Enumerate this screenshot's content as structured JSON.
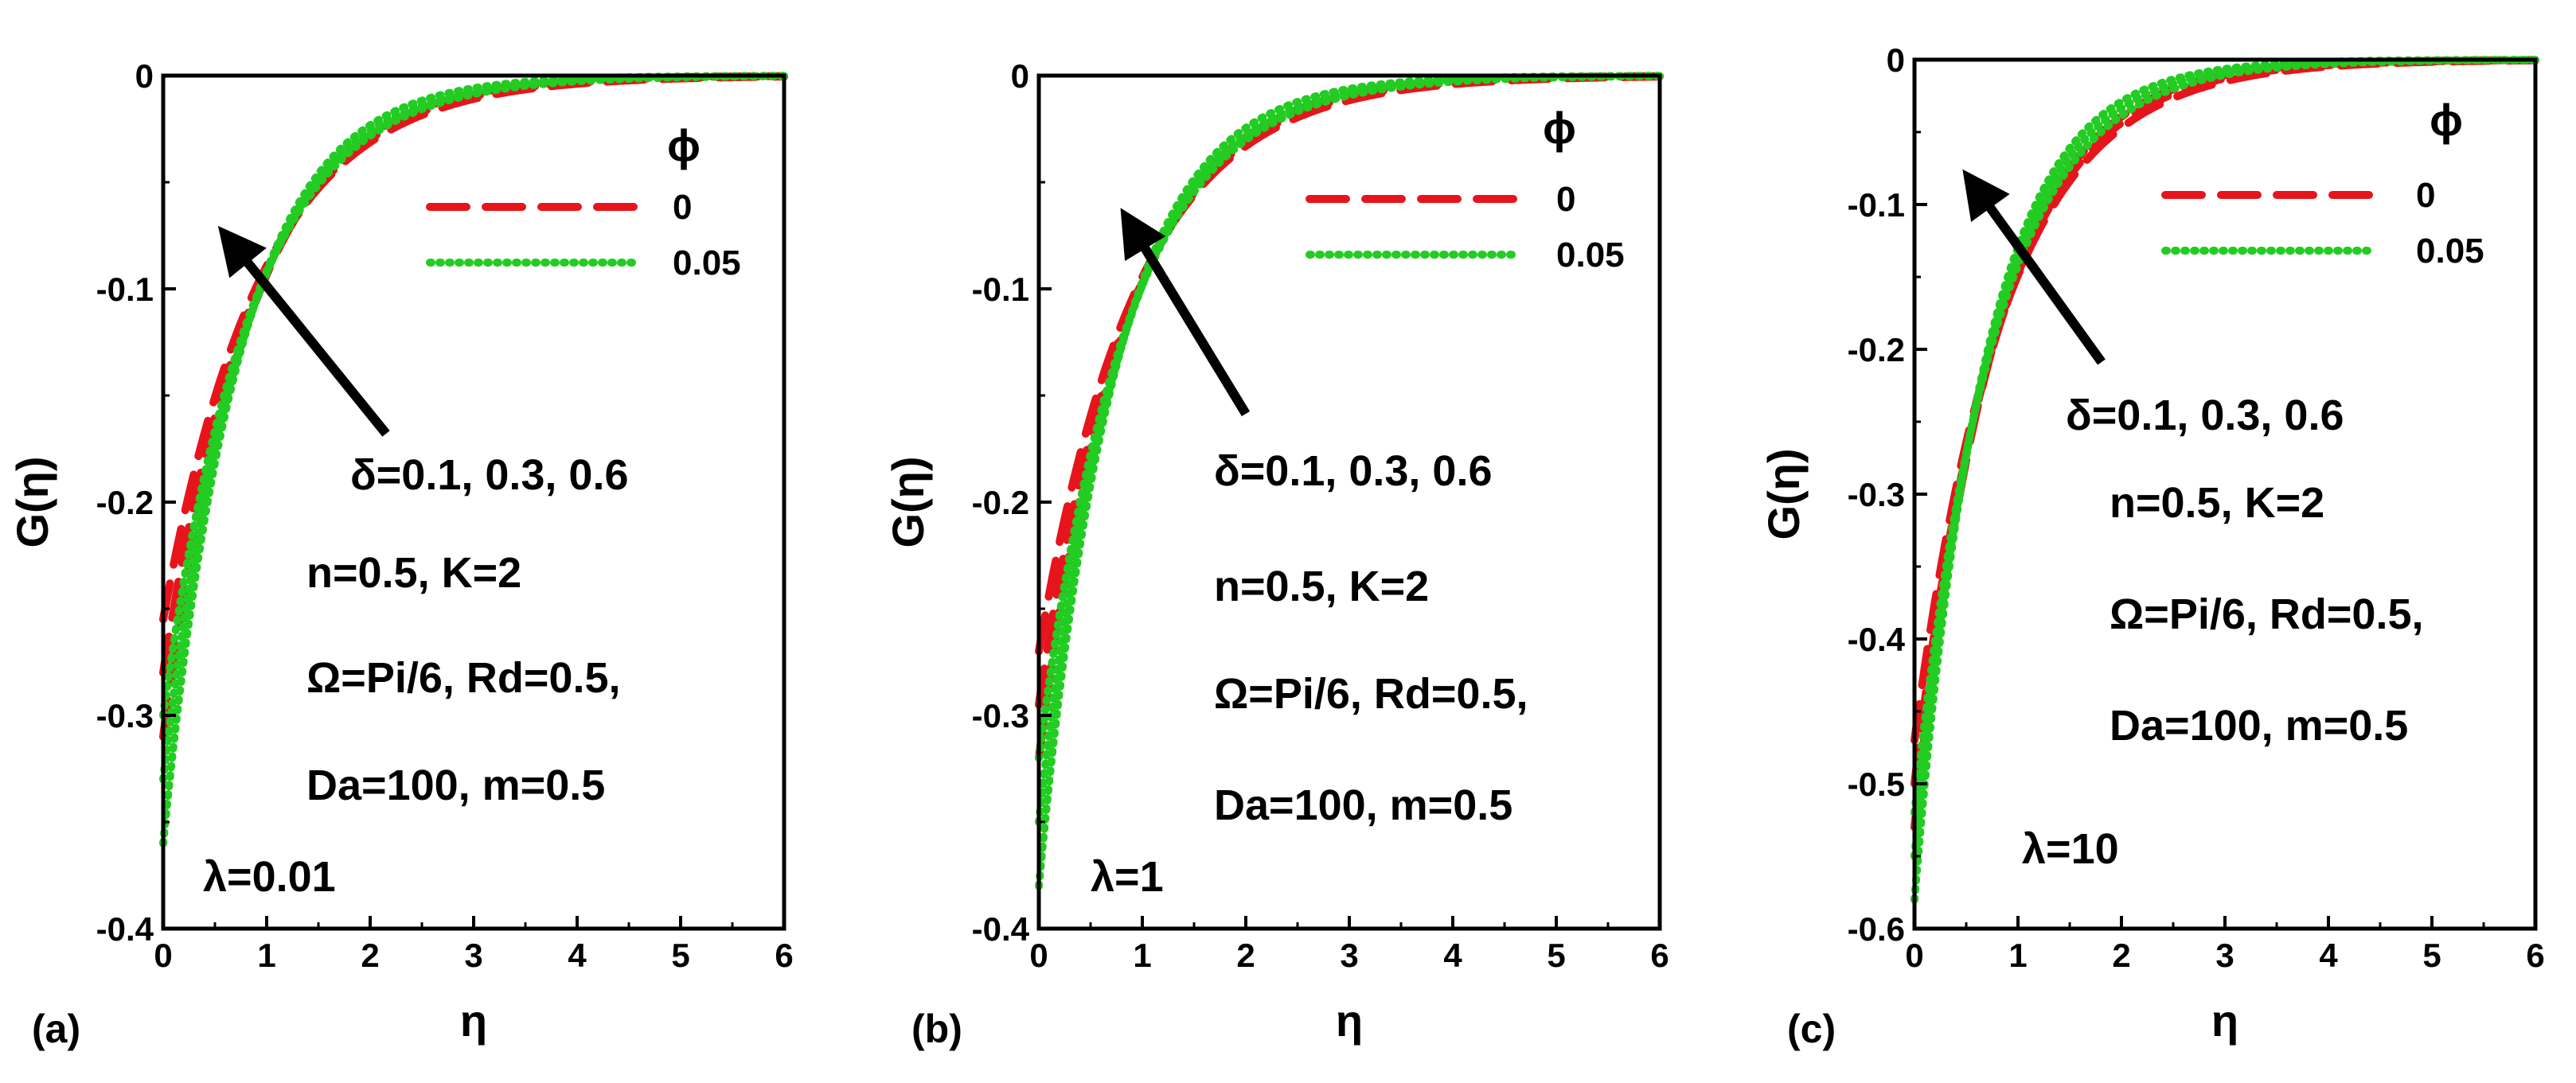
{
  "figure": {
    "panel_count": 3
  },
  "chart_data": [
    {
      "type": "line",
      "panel_label": "(a)",
      "xlabel": "η",
      "ylabel": "G(η)",
      "xlim": [
        0,
        6
      ],
      "ylim": [
        -0.4,
        0.0
      ],
      "xticks": [
        0,
        1,
        2,
        3,
        4,
        5,
        6
      ],
      "xtick_labels": [
        "0",
        "1",
        "2",
        "3",
        "4",
        "5",
        "6"
      ],
      "yticks": [
        -0.4,
        -0.3,
        -0.2,
        -0.1,
        0
      ],
      "ytick_labels": [
        "-0.4",
        "-0.3",
        "-0.2",
        "-0.1",
        "0"
      ],
      "legend": {
        "title": "ϕ",
        "entries": [
          {
            "label": "0",
            "color": "#e8141c",
            "style": "dashed"
          },
          {
            "label": "0.05",
            "color": "#22cc22",
            "style": "dotted"
          }
        ]
      },
      "param_delta": "δ=0.1, 0.3, 0.6",
      "param_nk": "n=0.5,  K=2",
      "param_omega": "Ω=Pi/6, Rd=0.5,",
      "param_da": "Da=100, m=0.5",
      "param_lambda": "λ=0.01",
      "arrow_note": "arrow points in direction of increasing δ",
      "series": [
        {
          "name": "ϕ=0, δ=0.1",
          "phi": "0",
          "color": "#e8141c",
          "style": "dashed",
          "g0": -0.255,
          "k": 1.05
        },
        {
          "name": "ϕ=0, δ=0.3",
          "phi": "0",
          "color": "#e8141c",
          "style": "dashed",
          "g0": -0.28,
          "k": 1.12
        },
        {
          "name": "ϕ=0, δ=0.6",
          "phi": "0",
          "color": "#e8141c",
          "style": "dashed",
          "g0": -0.31,
          "k": 1.2
        },
        {
          "name": "ϕ=0.05, δ=0.1",
          "phi": "0.05",
          "color": "#22cc22",
          "style": "dotted",
          "g0": -0.3,
          "k": 1.18
        },
        {
          "name": "ϕ=0.05, δ=0.3",
          "phi": "0.05",
          "color": "#22cc22",
          "style": "dotted",
          "g0": -0.33,
          "k": 1.27
        },
        {
          "name": "ϕ=0.05, δ=0.6",
          "phi": "0.05",
          "color": "#22cc22",
          "style": "dotted",
          "g0": -0.36,
          "k": 1.37
        }
      ]
    },
    {
      "type": "line",
      "panel_label": "(b)",
      "xlabel": "η",
      "ylabel": "G(η)",
      "xlim": [
        0,
        6
      ],
      "ylim": [
        -0.4,
        0.0
      ],
      "xticks": [
        0,
        1,
        2,
        3,
        4,
        5,
        6
      ],
      "xtick_labels": [
        "0",
        "1",
        "2",
        "3",
        "4",
        "5",
        "6"
      ],
      "yticks": [
        -0.4,
        -0.3,
        -0.2,
        -0.1,
        0
      ],
      "ytick_labels": [
        "-0.4",
        "-0.3",
        "-0.2",
        "-0.1",
        "0"
      ],
      "legend": {
        "title": "ϕ",
        "entries": [
          {
            "label": "0",
            "color": "#e8141c",
            "style": "dashed"
          },
          {
            "label": "0.05",
            "color": "#22cc22",
            "style": "dotted"
          }
        ]
      },
      "param_delta": "δ=0.1, 0.3, 0.6",
      "param_nk": "n=0.5,  K=2",
      "param_omega": "Ω=Pi/6, Rd=0.5,",
      "param_da": "Da=100, m=0.5",
      "param_lambda": "λ=1",
      "arrow_note": "arrow points in direction of increasing δ",
      "series": [
        {
          "name": "ϕ=0, δ=0.1",
          "phi": "0",
          "color": "#e8141c",
          "style": "dashed",
          "g0": -0.27,
          "k": 1.05
        },
        {
          "name": "ϕ=0, δ=0.3",
          "phi": "0",
          "color": "#e8141c",
          "style": "dashed",
          "g0": -0.295,
          "k": 1.12
        },
        {
          "name": "ϕ=0, δ=0.6",
          "phi": "0",
          "color": "#e8141c",
          "style": "dashed",
          "g0": -0.32,
          "k": 1.2
        },
        {
          "name": "ϕ=0.05, δ=0.1",
          "phi": "0.05",
          "color": "#22cc22",
          "style": "dotted",
          "g0": -0.32,
          "k": 1.18
        },
        {
          "name": "ϕ=0.05, δ=0.3",
          "phi": "0.05",
          "color": "#22cc22",
          "style": "dotted",
          "g0": -0.35,
          "k": 1.27
        },
        {
          "name": "ϕ=0.05, δ=0.6",
          "phi": "0.05",
          "color": "#22cc22",
          "style": "dotted",
          "g0": -0.38,
          "k": 1.37
        }
      ]
    },
    {
      "type": "line",
      "panel_label": "(c)",
      "xlabel": "η",
      "ylabel": "G(η)",
      "xlim": [
        0,
        6
      ],
      "ylim": [
        -0.6,
        0.0
      ],
      "xticks": [
        0,
        1,
        2,
        3,
        4,
        5,
        6
      ],
      "xtick_labels": [
        "0",
        "1",
        "2",
        "3",
        "4",
        "5",
        "6"
      ],
      "yticks": [
        -0.6,
        -0.5,
        -0.4,
        -0.3,
        -0.2,
        -0.1,
        0
      ],
      "ytick_labels": [
        "-0.6",
        "-0.5",
        "-0.4",
        "-0.3",
        "-0.2",
        "-0.1",
        "0"
      ],
      "legend": {
        "title": "ϕ",
        "entries": [
          {
            "label": "0",
            "color": "#e8141c",
            "style": "dashed"
          },
          {
            "label": "0.05",
            "color": "#22cc22",
            "style": "dotted"
          }
        ]
      },
      "param_delta": "δ=0.1, 0.3, 0.6",
      "param_nk": "n=0.5,  K=2",
      "param_omega": "Ω=Pi/6, Rd=0.5,",
      "param_da": "Da=100, m=0.5",
      "param_lambda": "λ=10",
      "arrow_note": "arrow points in direction of increasing δ",
      "series": [
        {
          "name": "ϕ=0, δ=0.1",
          "phi": "0",
          "color": "#e8141c",
          "style": "dashed",
          "g0": -0.47,
          "k": 1.15
        },
        {
          "name": "ϕ=0, δ=0.3",
          "phi": "0",
          "color": "#e8141c",
          "style": "dashed",
          "g0": -0.5,
          "k": 1.22
        },
        {
          "name": "ϕ=0, δ=0.6",
          "phi": "0",
          "color": "#e8141c",
          "style": "dashed",
          "g0": -0.53,
          "k": 1.3
        },
        {
          "name": "ϕ=0.05, δ=0.1",
          "phi": "0.05",
          "color": "#22cc22",
          "style": "dotted",
          "g0": -0.52,
          "k": 1.3
        },
        {
          "name": "ϕ=0.05, δ=0.3",
          "phi": "0.05",
          "color": "#22cc22",
          "style": "dotted",
          "g0": -0.55,
          "k": 1.4
        },
        {
          "name": "ϕ=0.05, δ=0.6",
          "phi": "0.05",
          "color": "#22cc22",
          "style": "dotted",
          "g0": -0.58,
          "k": 1.5
        }
      ]
    }
  ]
}
